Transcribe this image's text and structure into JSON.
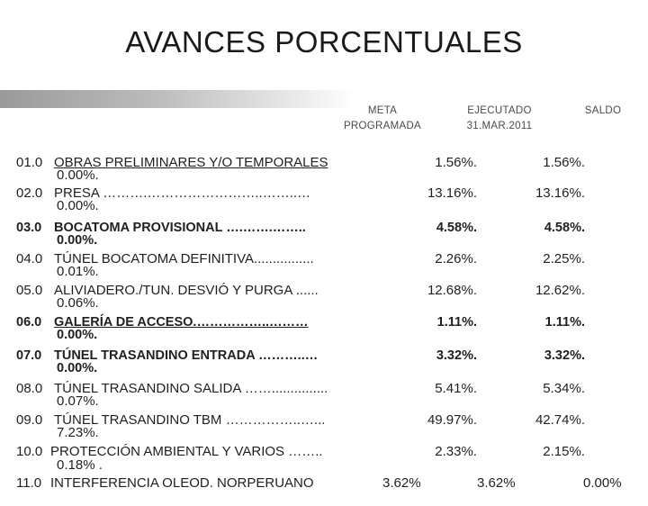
{
  "title": "AVANCES PORCENTUALES",
  "headers": {
    "meta_line1": "META",
    "meta_line2": "PROGRAMADA",
    "ejecutado_line1": "EJECUTADO",
    "ejecutado_line2": "31.MAR.2011",
    "saldo": "SALDO"
  },
  "rows": [
    {
      "num": "01.0",
      "desc": "OBRAS PRELIMINARES Y/O TEMPORALES",
      "meta": "0.00%.",
      "ejecutado": "1.56%.",
      "saldo": "1.56%."
    },
    {
      "num": "02.0",
      "desc": "PRESA ……….……………………..……..…",
      "meta": "0.00%.",
      "ejecutado": "13.16%.",
      "saldo": "13.16%."
    },
    {
      "num": "03.0",
      "desc": "BOCATOMA PROVISIONAL ….…….……..",
      "meta": "0.00%.",
      "ejecutado": "4.58%.",
      "saldo": "4.58%."
    },
    {
      "num": "04.0",
      "desc": "TÚNEL BOCATOMA DEFINITIVA................",
      "meta": "0.01%.",
      "ejecutado": "2.26%.",
      "saldo": "2.25%."
    },
    {
      "num": "05.0",
      "desc": "ALIVIADERO./TUN. DESVIÓ Y PURGA ......",
      "meta": "0.06%.",
      "ejecutado": "12.68%.",
      "saldo": "12.62%."
    },
    {
      "num": "06.0",
      "desc": "GALERÍA DE ACCESO.……………..………",
      "meta": "0.00%.",
      "ejecutado": "1.11%.",
      "saldo": "1.11%."
    },
    {
      "num": "07.0",
      "desc": "TÚNEL TRASANDINO ENTRADA ………..…",
      "meta": "0.00%.",
      "ejecutado": "3.32%.",
      "saldo": "3.32%."
    },
    {
      "num": "08.0",
      "desc": "TÚNEL TRASANDINO SALIDA ……...............",
      "meta": "0.07%.",
      "ejecutado": "5.41%.",
      "saldo": "5.34%."
    },
    {
      "num": "09.0",
      "desc": "TÚNEL TRASANDINO TBM ……………..…...",
      "meta": "7.23%.",
      "ejecutado": "49.97%.",
      "saldo": "42.74%."
    },
    {
      "num": "10.0",
      "desc": "PROTECCIÓN AMBIENTAL Y VARIOS ……..",
      "meta": "0.18% .",
      "ejecutado": "2.33%.",
      "saldo": "2.15%."
    },
    {
      "num": "11.0",
      "desc": "INTERFERENCIA OLEOD. NORPERUANO",
      "meta": "3.62%",
      "ejecutado": "3.62%",
      "saldo": "0.00%"
    }
  ]
}
